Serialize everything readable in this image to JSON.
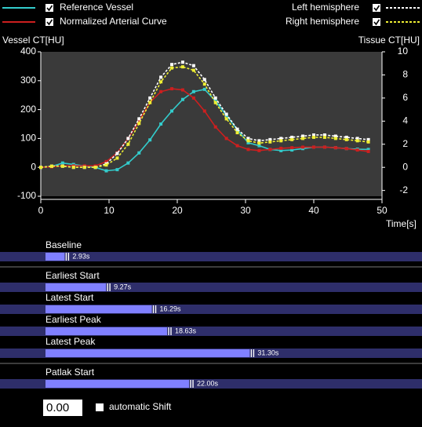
{
  "chart_data": {
    "type": "line",
    "y_label": "Vessel CT[HU]",
    "y2_label": "Tissue CT[HU]",
    "x_label": "Time[s]",
    "x": [
      0,
      1.6,
      3.2,
      4.8,
      6.4,
      8,
      9.6,
      11.2,
      12.8,
      14.4,
      16,
      17.6,
      19.2,
      20.8,
      22.4,
      24,
      25.6,
      27.2,
      28.8,
      30.4,
      32,
      33.6,
      35.2,
      36.8,
      38.4,
      40,
      41.6,
      43.2,
      44.8,
      46.4,
      48
    ],
    "xlim": [
      0,
      50
    ],
    "xticks": [
      0,
      10,
      20,
      30,
      40,
      50
    ],
    "ylim": [
      -100,
      400
    ],
    "yticks": [
      -100,
      0,
      100,
      200,
      300,
      400
    ],
    "y2lim": [
      -2.5,
      10
    ],
    "y2ticks": [
      -2,
      0,
      2,
      4,
      6,
      8,
      10
    ],
    "series": [
      {
        "name": "Reference Vessel",
        "color": "#33cccc",
        "dashed": false,
        "checked": true,
        "values": [
          0,
          3,
          15,
          10,
          5,
          0,
          -12,
          -8,
          15,
          50,
          95,
          150,
          195,
          235,
          262,
          270,
          230,
          180,
          130,
          85,
          75,
          62,
          58,
          60,
          65,
          70,
          70,
          68,
          65,
          63,
          62
        ]
      },
      {
        "name": "Normalized Arterial Curve",
        "color": "#cc1f1f",
        "dashed": false,
        "checked": true,
        "values": [
          0,
          2,
          5,
          5,
          5,
          5,
          20,
          50,
          100,
          160,
          225,
          262,
          272,
          268,
          240,
          195,
          140,
          100,
          75,
          62,
          58,
          62,
          66,
          68,
          70,
          70,
          70,
          68,
          65,
          60,
          55
        ]
      },
      {
        "name": "Left hemisphere",
        "color": "#ffffff",
        "dashed": true,
        "checked": true,
        "axis": "y2",
        "values": [
          0,
          0.1,
          0.1,
          0,
          0,
          0,
          0.3,
          1.2,
          2.5,
          4.2,
          6,
          7.8,
          8.9,
          9.1,
          8.8,
          7.6,
          6,
          4.6,
          3.3,
          2.5,
          2.3,
          2.4,
          2.5,
          2.6,
          2.7,
          2.8,
          2.8,
          2.7,
          2.6,
          2.5,
          2.4
        ]
      },
      {
        "name": "Right hemisphere",
        "color": "#eeee33",
        "dashed": true,
        "checked": true,
        "axis": "y2",
        "values": [
          0,
          0.1,
          0.1,
          0,
          0,
          0,
          0.2,
          0.8,
          2,
          3.8,
          5.6,
          7.4,
          8.6,
          8.7,
          8.4,
          7.2,
          5.6,
          4.2,
          3,
          2.3,
          2.1,
          2.2,
          2.3,
          2.4,
          2.5,
          2.6,
          2.6,
          2.5,
          2.4,
          2.3,
          2.2
        ]
      }
    ]
  },
  "timing": [
    [
      {
        "label": "Baseline",
        "value": 2.93,
        "value_label": "2.93s"
      }
    ],
    [
      {
        "label": "Earliest Start",
        "value": 9.27,
        "value_label": "9.27s"
      },
      {
        "label": "Latest Start",
        "value": 16.29,
        "value_label": "16.29s"
      },
      {
        "label": "Earliest Peak",
        "value": 18.63,
        "value_label": "18.63s"
      },
      {
        "label": "Latest Peak",
        "value": 31.3,
        "value_label": "31.30s"
      }
    ],
    [
      {
        "label": "Patlak Start",
        "value": 22.0,
        "value_label": "22.00s"
      }
    ]
  ],
  "shift": {
    "value": "0.00",
    "checkbox_label": "automatic Shift",
    "checked": false
  }
}
